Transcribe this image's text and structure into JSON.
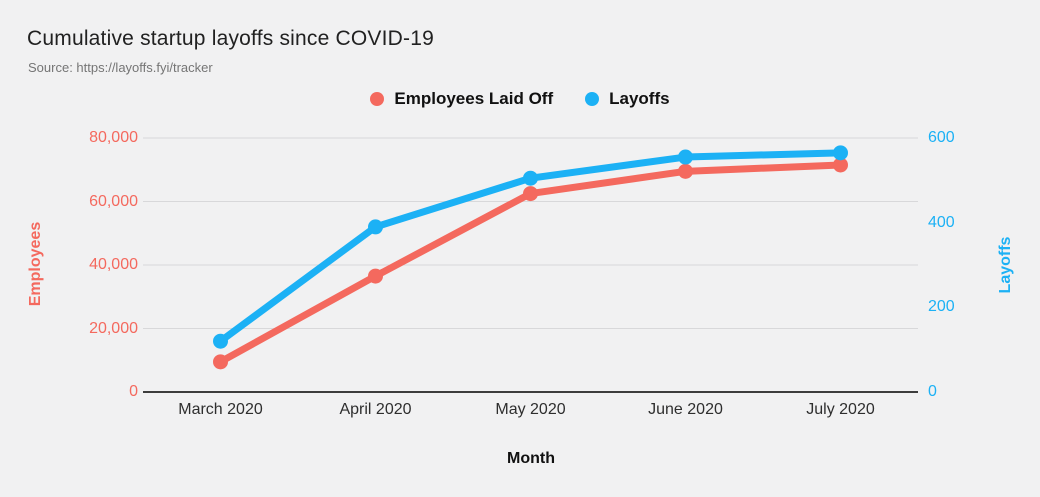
{
  "header": {
    "title": "Cumulative startup layoffs since COVID-19",
    "source": "Source: https://layoffs.fyi/tracker"
  },
  "colors": {
    "background": "#f1f1f2",
    "employees_series": "#F4695E",
    "layoffs_series": "#1CB1F5",
    "gridline": "#d8d8da",
    "baseline": "#3d3d3d",
    "title_text": "#212121",
    "source_text": "#757575"
  },
  "chart_data": {
    "type": "line",
    "categories": [
      "March 2020",
      "April 2020",
      "May 2020",
      "June 2020",
      "July 2020"
    ],
    "series": [
      {
        "name": "Employees Laid Off",
        "axis": "left",
        "color": "#F4695E",
        "values": [
          9500,
          36500,
          62500,
          69500,
          71500
        ]
      },
      {
        "name": "Layoffs",
        "axis": "right",
        "color": "#1CB1F5",
        "values": [
          120,
          390,
          505,
          555,
          565
        ]
      }
    ],
    "left_axis": {
      "label": "Employees",
      "ticks": [
        0,
        20000,
        40000,
        60000,
        80000
      ],
      "range": [
        0,
        80000
      ]
    },
    "right_axis": {
      "label": "Layoffs",
      "ticks": [
        0,
        200,
        400,
        600
      ],
      "range": [
        0,
        600
      ]
    },
    "x_axis": {
      "label": "Month"
    },
    "grid": "horizontal",
    "legend_position": "top-center"
  }
}
